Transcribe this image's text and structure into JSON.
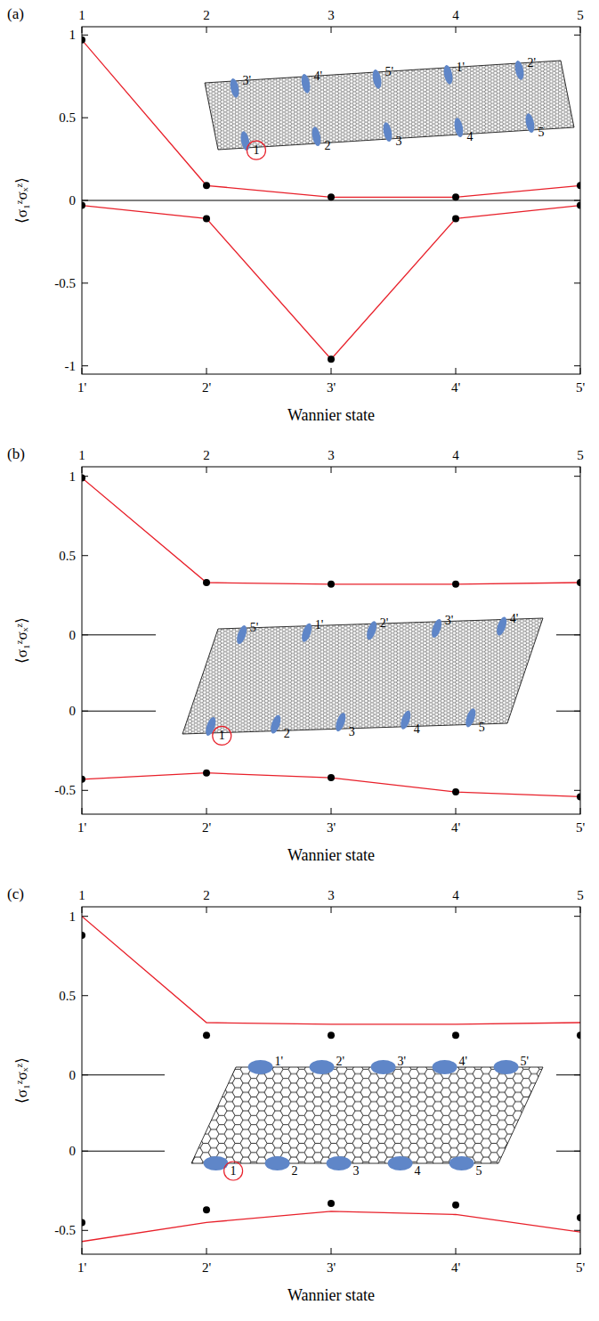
{
  "chart_data": [
    {
      "type": "line",
      "title": "(a)",
      "xlabel": "Wannier state",
      "ylabel": "⟨σ₁ᶻσₓᶻ⟩",
      "categories": [
        "1'",
        "2'",
        "3'",
        "4'",
        "5'"
      ],
      "x2ticks": [
        1,
        2,
        3,
        4,
        5
      ],
      "ylim": [
        -1.05,
        1.05
      ],
      "yticks": [
        -1,
        -0.5,
        0,
        0.5,
        1
      ],
      "annotations": {
        "top": [
          "3'",
          "4'",
          "5'",
          "1'",
          "2'"
        ],
        "bottom": [
          "1",
          "2",
          "3",
          "4",
          "5"
        ]
      },
      "series": [
        {
          "type": "line",
          "color": "#e8202a",
          "line_style": "solid",
          "values": [
            0.97,
            0.09,
            0.02,
            0.02,
            0.09
          ]
        },
        {
          "type": "scatter",
          "color": "#000000",
          "marker": "circle",
          "values": [
            0.97,
            0.09,
            0.02,
            0.02,
            0.09
          ]
        },
        {
          "type": "line",
          "color": "#e8202a",
          "line_style": "solid",
          "values": [
            -0.03,
            -0.11,
            -0.96,
            -0.11,
            -0.03
          ]
        },
        {
          "type": "scatter",
          "color": "#000000",
          "marker": "circle",
          "values": [
            -0.03,
            -0.11,
            -0.96,
            -0.11,
            -0.03
          ]
        }
      ]
    },
    {
      "type": "line",
      "title": "(b)",
      "xlabel": "Wannier state",
      "ylabel": "⟨σ₁ᶻσₓᶻ⟩",
      "categories": [
        "1'",
        "2'",
        "3'",
        "4'",
        "5'"
      ],
      "x2ticks": [
        1,
        2,
        3,
        4,
        5
      ],
      "ylim": [
        -0.24,
        1.06
      ],
      "yticks": [
        0,
        0.5,
        1
      ],
      "y2lim": [
        -0.65,
        0.24
      ],
      "y2ticks": [
        -0.5,
        0
      ],
      "annotations": {
        "top": [
          "5'",
          "1'",
          "2'",
          "3'",
          "4'"
        ],
        "bottom": [
          "1",
          "2",
          "3",
          "4",
          "5"
        ]
      },
      "series": [
        {
          "type": "line",
          "color": "#e8202a",
          "line_style": "solid",
          "values": [
            0.99,
            0.33,
            0.32,
            0.32,
            0.33
          ]
        },
        {
          "type": "scatter",
          "color": "#000000",
          "marker": "circle",
          "values": [
            0.99,
            0.33,
            0.32,
            0.32,
            0.33
          ]
        },
        {
          "type": "line",
          "color": "#e8202a",
          "line_style": "solid",
          "axis": "y2",
          "values": [
            -0.43,
            -0.39,
            -0.42,
            -0.51,
            -0.54
          ]
        },
        {
          "type": "scatter",
          "color": "#000000",
          "marker": "circle",
          "axis": "y2",
          "values": [
            -0.43,
            -0.39,
            -0.42,
            -0.51,
            -0.54
          ]
        }
      ]
    },
    {
      "type": "line",
      "title": "(c)",
      "xlabel": "Wannier state",
      "ylabel": "⟨σ₁ᶻσₓᶻ⟩",
      "categories": [
        "1'",
        "2'",
        "3'",
        "4'",
        "5'"
      ],
      "x2ticks": [
        1,
        2,
        3,
        4,
        5
      ],
      "ylim": [
        -0.24,
        1.06
      ],
      "yticks": [
        0,
        0.5,
        1
      ],
      "y2lim": [
        -0.65,
        0.24
      ],
      "y2ticks": [
        -0.5,
        0
      ],
      "annotations": {
        "top": [
          "1'",
          "2'",
          "3'",
          "4'",
          "5'"
        ],
        "bottom": [
          "1",
          "2",
          "3",
          "4",
          "5"
        ]
      },
      "series": [
        {
          "type": "line",
          "color": "#e8202a",
          "line_style": "solid",
          "values": [
            1.0,
            0.33,
            0.32,
            0.32,
            0.33
          ]
        },
        {
          "type": "scatter",
          "color": "#000000",
          "marker": "circle",
          "values": [
            0.88,
            0.25,
            0.25,
            0.25,
            0.25
          ]
        },
        {
          "type": "line",
          "color": "#e8202a",
          "line_style": "solid",
          "axis": "y2",
          "values": [
            -0.57,
            -0.45,
            -0.38,
            -0.4,
            -0.51
          ]
        },
        {
          "type": "scatter",
          "color": "#000000",
          "marker": "circle",
          "axis": "y2",
          "values": [
            -0.45,
            -0.37,
            -0.33,
            -0.34,
            -0.42
          ]
        }
      ]
    }
  ]
}
